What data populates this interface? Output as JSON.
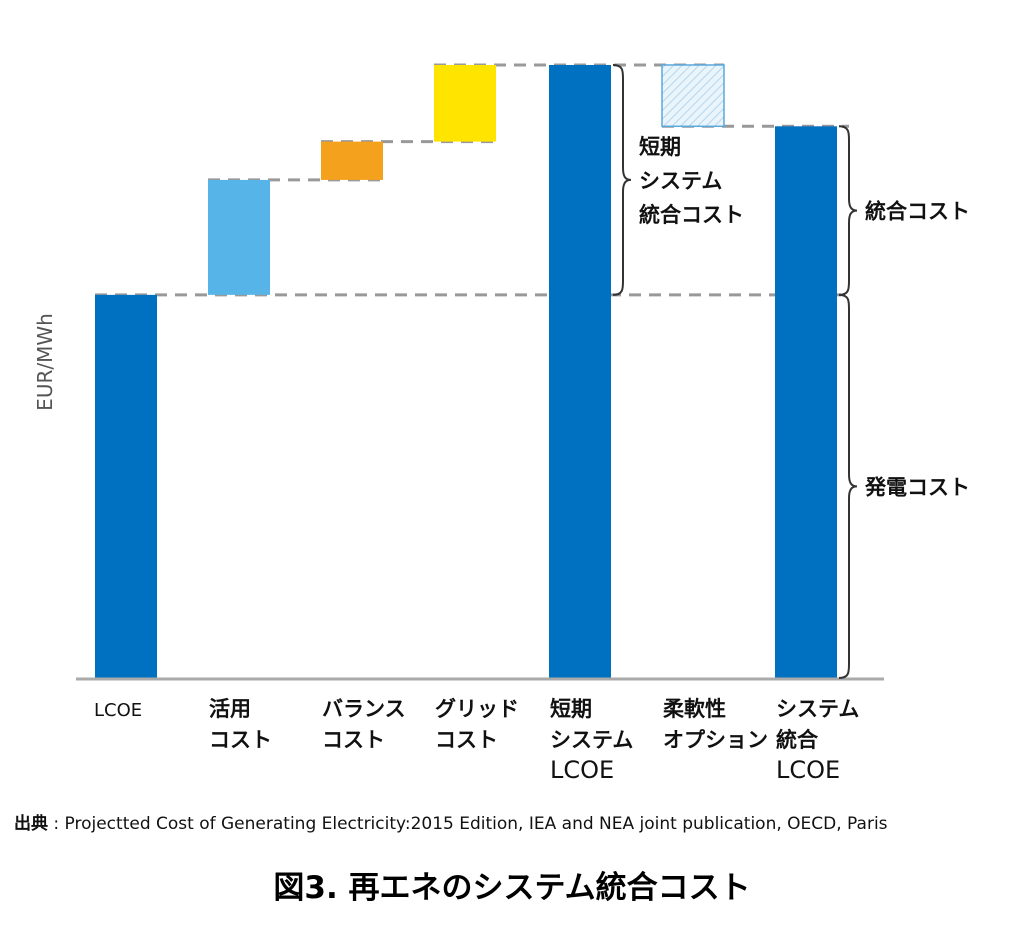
{
  "chart_data": {
    "type": "bar",
    "subtype": "waterfall",
    "ylabel": "EUR/MWh",
    "y_ticks_shown": false,
    "grid": false,
    "categories": [
      [
        "LCOE"
      ],
      [
        "活用",
        "コスト"
      ],
      [
        "バランス",
        "コスト"
      ],
      [
        "グリッド",
        "コスト"
      ],
      [
        "短期",
        "システム",
        "LCOE"
      ],
      [
        "柔軟性",
        "オプション"
      ],
      [
        "システム",
        "統合",
        "LCOE"
      ]
    ],
    "bars": [
      {
        "kind": "total",
        "base": 0,
        "value": 100,
        "color": "#0070c0"
      },
      {
        "kind": "increase",
        "base": 100,
        "value": 30,
        "color": "#56b4e8"
      },
      {
        "kind": "increase",
        "base": 130,
        "value": 10,
        "color": "#f4a11d"
      },
      {
        "kind": "increase",
        "base": 140,
        "value": 20,
        "color": "#ffe400"
      },
      {
        "kind": "total",
        "base": 0,
        "value": 160,
        "color": "#0070c0"
      },
      {
        "kind": "decrease",
        "base": 144,
        "value": 16,
        "color": "#ddeef9",
        "pattern": "hatched"
      },
      {
        "kind": "total",
        "base": 0,
        "value": 144,
        "color": "#0070c0"
      }
    ],
    "ylim": [
      0,
      166
    ],
    "annotations": [
      {
        "text": [
          "短期",
          "システム",
          "統合コスト"
        ],
        "from": 100,
        "to": 160,
        "attach_bar": 4
      },
      {
        "text": [
          "統合コスト"
        ],
        "from": 100,
        "to": 144,
        "attach_bar": 6
      },
      {
        "text": [
          "発電コスト"
        ],
        "from": 0,
        "to": 100,
        "attach_bar": 6
      }
    ]
  },
  "source": {
    "label": "出典",
    "text": " : Projectted Cost of Generating Electricity:2015 Edition, IEA and NEA joint publication, OECD, Paris"
  },
  "figure_title": "図3. 再エネのシステム統合コスト"
}
